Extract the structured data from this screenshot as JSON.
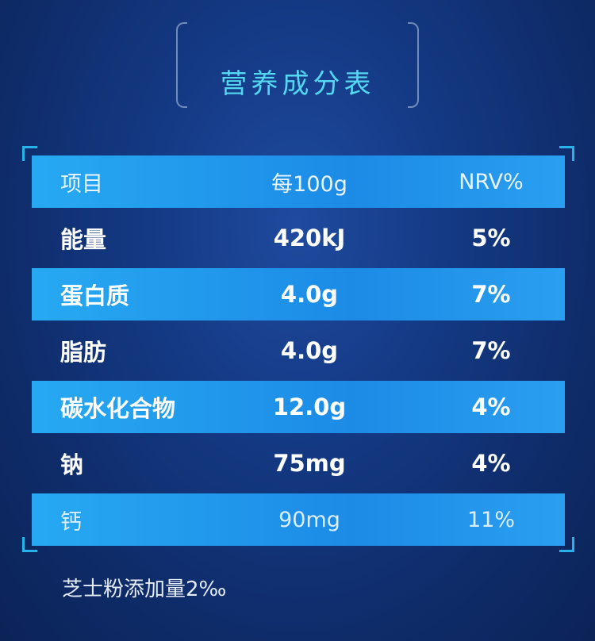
{
  "title": "营养成分表",
  "header": {
    "item": "项目",
    "per100g": "每100g",
    "nrv": "NRV%"
  },
  "rows": [
    {
      "item": "能量",
      "value": "420kJ",
      "nrv": "5%"
    },
    {
      "item": "蛋白质",
      "value": "4.0g",
      "nrv": "7%"
    },
    {
      "item": "脂肪",
      "value": "4.0g",
      "nrv": "7%"
    },
    {
      "item": "碳水化合物",
      "value": "12.0g",
      "nrv": "4%"
    },
    {
      "item": "钠",
      "value": "75mg",
      "nrv": "4%"
    },
    {
      "item": "钙",
      "value": "90mg",
      "nrv": "11%"
    }
  ],
  "footnote": "芝士粉添加量2‰",
  "colors": {
    "title": "#54d8f2",
    "band": "#27a9f2",
    "background": "#143a85",
    "frame_corner": "#27b3ea"
  }
}
